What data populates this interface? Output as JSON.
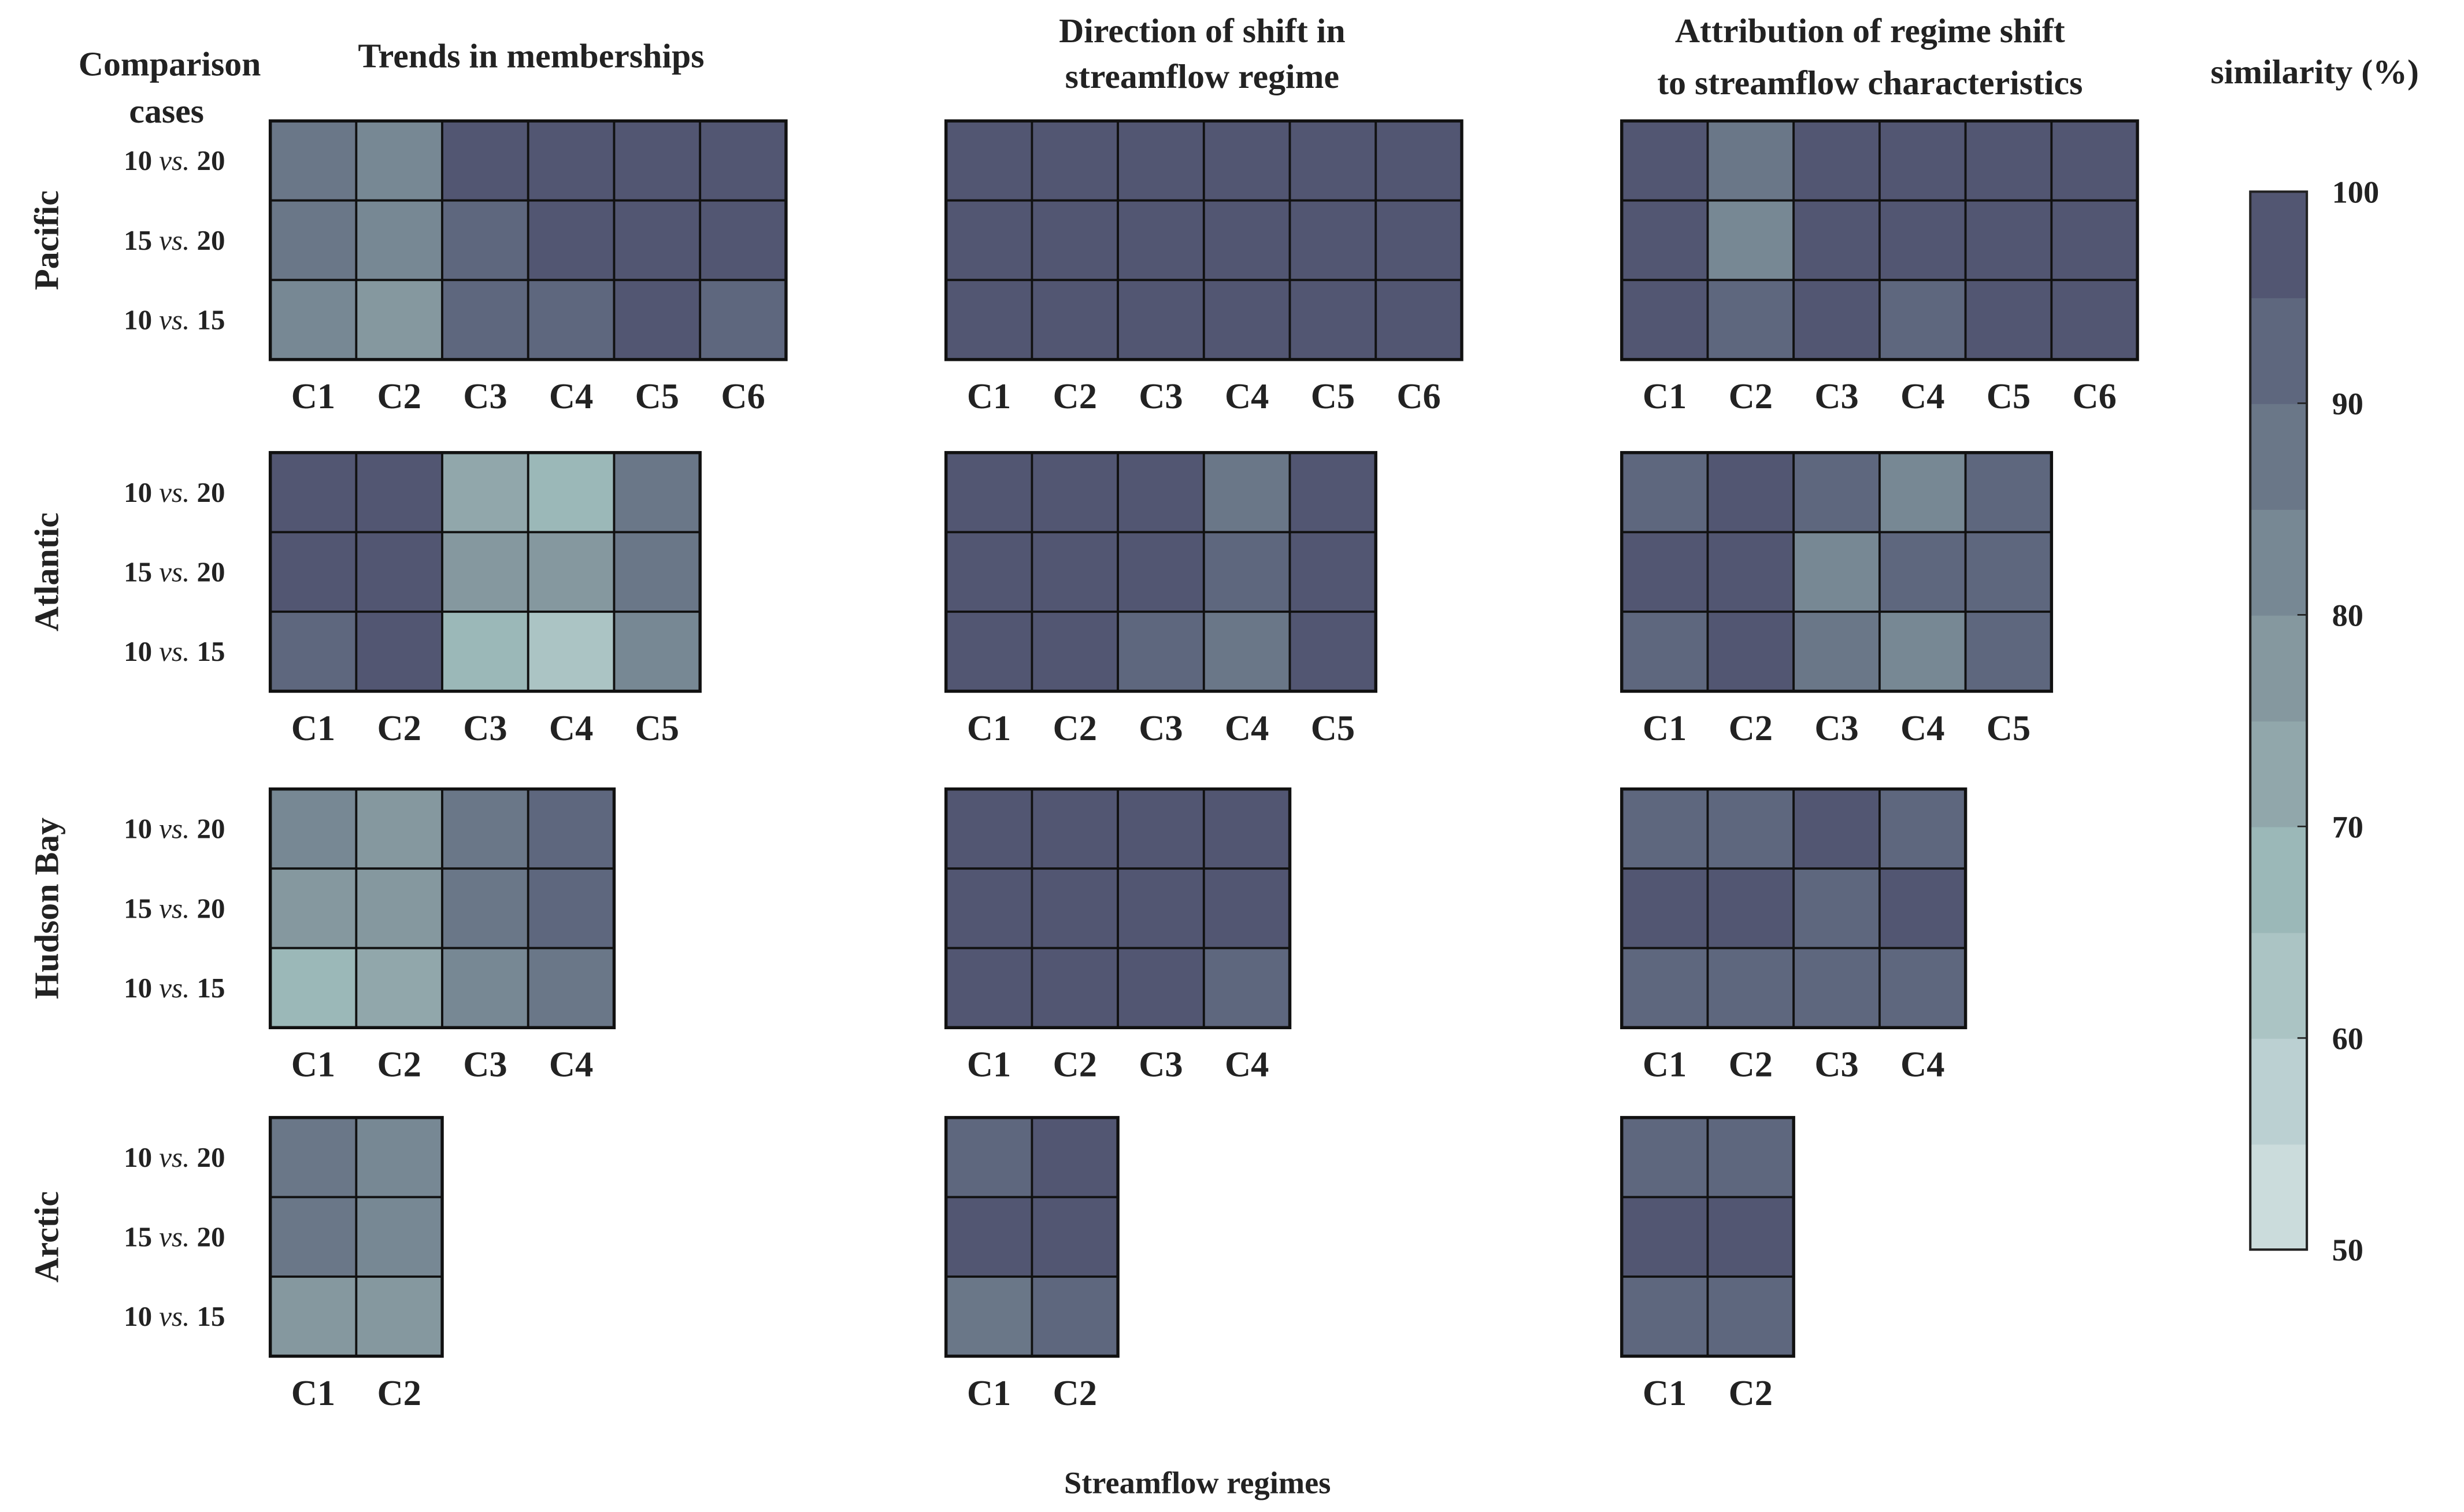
{
  "chart_data": {
    "type": "heatmap",
    "xlabel": "Streamflow regimes",
    "ylabel_header": [
      "Comparison",
      "cases"
    ],
    "panel_titles": [
      [
        "Trends in memberships"
      ],
      [
        "Direction of shift in",
        "streamflow regime"
      ],
      [
        "Attribution of regime shift",
        "to streamflow characteristics"
      ]
    ],
    "row_labels": [
      {
        "a": "10 ",
        "vs": "vs.",
        "b": " 20"
      },
      {
        "a": "15 ",
        "vs": "vs.",
        "b": " 20"
      },
      {
        "a": "10 ",
        "vs": "vs.",
        "b": " 15"
      }
    ],
    "colorbar": {
      "title": "similarity (%)",
      "range": [
        50,
        100
      ],
      "ticks": [
        50,
        60,
        70,
        80,
        90,
        100
      ],
      "bin_width": 5,
      "colors": [
        "#cbdcdc",
        "#bbd0d2",
        "#abc4c4",
        "#9bb8b8",
        "#91a7ab",
        "#85989f",
        "#778894",
        "#6a7788",
        "#5e677e",
        "#525672"
      ]
    },
    "regions": [
      {
        "name": "Pacific",
        "regimes": [
          "C1",
          "C2",
          "C3",
          "C4",
          "C5",
          "C6"
        ],
        "panels": [
          [
            [
              87.5,
              82.5,
              97.5,
              97.5,
              97.5,
              97.5
            ],
            [
              87.5,
              82.5,
              92.5,
              97.5,
              97.5,
              97.5
            ],
            [
              82.5,
              77.5,
              92.5,
              92.5,
              97.5,
              92.5
            ]
          ],
          [
            [
              97.5,
              97.5,
              97.5,
              97.5,
              97.5,
              97.5
            ],
            [
              97.5,
              97.5,
              97.5,
              97.5,
              97.5,
              97.5
            ],
            [
              97.5,
              97.5,
              97.5,
              97.5,
              97.5,
              97.5
            ]
          ],
          [
            [
              97.5,
              87.5,
              97.5,
              97.5,
              97.5,
              97.5
            ],
            [
              97.5,
              82.5,
              97.5,
              97.5,
              97.5,
              97.5
            ],
            [
              97.5,
              92.5,
              97.5,
              92.5,
              97.5,
              97.5
            ]
          ]
        ]
      },
      {
        "name": "Atlantic",
        "regimes": [
          "C1",
          "C2",
          "C3",
          "C4",
          "C5"
        ],
        "panels": [
          [
            [
              97.5,
              97.5,
              72.5,
              67.5,
              87.5
            ],
            [
              97.5,
              97.5,
              77.5,
              77.5,
              87.5
            ],
            [
              92.5,
              97.5,
              67.5,
              62.5,
              82.5
            ]
          ],
          [
            [
              97.5,
              97.5,
              97.5,
              87.5,
              97.5
            ],
            [
              97.5,
              97.5,
              97.5,
              92.5,
              97.5
            ],
            [
              97.5,
              97.5,
              92.5,
              87.5,
              97.5
            ]
          ],
          [
            [
              92.5,
              97.5,
              92.5,
              82.5,
              92.5
            ],
            [
              97.5,
              97.5,
              82.5,
              92.5,
              92.5
            ],
            [
              92.5,
              97.5,
              87.5,
              82.5,
              92.5
            ]
          ]
        ]
      },
      {
        "name": "Hudson Bay",
        "regimes": [
          "C1",
          "C2",
          "C3",
          "C4"
        ],
        "panels": [
          [
            [
              82.5,
              77.5,
              87.5,
              92.5
            ],
            [
              77.5,
              77.5,
              87.5,
              92.5
            ],
            [
              67.5,
              72.5,
              82.5,
              87.5
            ]
          ],
          [
            [
              97.5,
              97.5,
              97.5,
              97.5
            ],
            [
              97.5,
              97.5,
              97.5,
              97.5
            ],
            [
              97.5,
              97.5,
              97.5,
              92.5
            ]
          ],
          [
            [
              92.5,
              92.5,
              97.5,
              92.5
            ],
            [
              97.5,
              97.5,
              92.5,
              97.5
            ],
            [
              92.5,
              92.5,
              92.5,
              92.5
            ]
          ]
        ]
      },
      {
        "name": "Arctic",
        "regimes": [
          "C1",
          "C2"
        ],
        "panels": [
          [
            [
              87.5,
              82.5
            ],
            [
              87.5,
              82.5
            ],
            [
              77.5,
              77.5
            ]
          ],
          [
            [
              92.5,
              97.5
            ],
            [
              97.5,
              97.5
            ],
            [
              87.5,
              92.5
            ]
          ],
          [
            [
              92.5,
              92.5
            ],
            [
              97.5,
              97.5
            ],
            [
              92.5,
              92.5
            ]
          ]
        ]
      }
    ]
  }
}
